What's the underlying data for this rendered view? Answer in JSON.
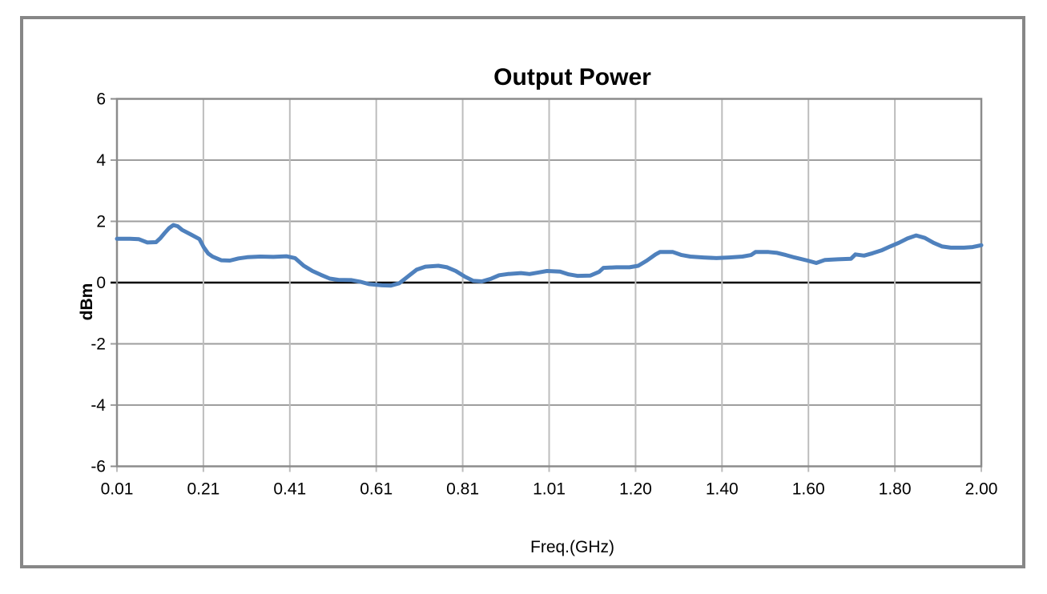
{
  "frame": {
    "background": "#FFFFFF",
    "border_color": "#878787"
  },
  "chart_data": {
    "type": "line",
    "title": "Output Power",
    "xlabel": "Freq.(GHz)",
    "ylabel": "dBm",
    "x_tick_labels": [
      "0.01",
      "0.21",
      "0.41",
      "0.61",
      "0.81",
      "1.01",
      "1.20",
      "1.40",
      "1.60",
      "1.80",
      "2.00"
    ],
    "x_tick_values": [
      0.01,
      0.21,
      0.41,
      0.61,
      0.81,
      1.01,
      1.2,
      1.4,
      1.6,
      1.8,
      2.0
    ],
    "xlim": [
      0.01,
      2.0
    ],
    "ylim": [
      -6,
      6
    ],
    "y_ticks": [
      6,
      4,
      2,
      0,
      -2,
      -4,
      -6
    ],
    "grid": true,
    "legend_position": "none",
    "colors": {
      "h_gridline": "#9E9E9E",
      "v_gridline": "#BDBDBD",
      "zero_line": "#000000",
      "plot_border": "#8C8C8C",
      "text": "#000000"
    },
    "series": [
      {
        "name": "Output Power",
        "color": "#4F81BD",
        "line_width": 5,
        "points": [
          [
            0.01,
            1.43
          ],
          [
            0.04,
            1.43
          ],
          [
            0.06,
            1.42
          ],
          [
            0.08,
            1.31
          ],
          [
            0.1,
            1.32
          ],
          [
            0.11,
            1.45
          ],
          [
            0.12,
            1.62
          ],
          [
            0.13,
            1.78
          ],
          [
            0.14,
            1.88
          ],
          [
            0.15,
            1.84
          ],
          [
            0.16,
            1.72
          ],
          [
            0.18,
            1.57
          ],
          [
            0.2,
            1.42
          ],
          [
            0.21,
            1.15
          ],
          [
            0.22,
            0.95
          ],
          [
            0.23,
            0.85
          ],
          [
            0.25,
            0.73
          ],
          [
            0.27,
            0.72
          ],
          [
            0.29,
            0.79
          ],
          [
            0.31,
            0.83
          ],
          [
            0.34,
            0.85
          ],
          [
            0.37,
            0.84
          ],
          [
            0.4,
            0.86
          ],
          [
            0.42,
            0.8
          ],
          [
            0.44,
            0.55
          ],
          [
            0.46,
            0.38
          ],
          [
            0.48,
            0.25
          ],
          [
            0.5,
            0.13
          ],
          [
            0.52,
            0.09
          ],
          [
            0.55,
            0.08
          ],
          [
            0.57,
            0.03
          ],
          [
            0.59,
            -0.05
          ],
          [
            0.62,
            -0.09
          ],
          [
            0.64,
            -0.1
          ],
          [
            0.66,
            -0.02
          ],
          [
            0.68,
            0.2
          ],
          [
            0.7,
            0.42
          ],
          [
            0.72,
            0.52
          ],
          [
            0.75,
            0.55
          ],
          [
            0.77,
            0.5
          ],
          [
            0.79,
            0.38
          ],
          [
            0.81,
            0.2
          ],
          [
            0.83,
            0.06
          ],
          [
            0.85,
            0.04
          ],
          [
            0.87,
            0.12
          ],
          [
            0.89,
            0.24
          ],
          [
            0.91,
            0.28
          ],
          [
            0.94,
            0.31
          ],
          [
            0.96,
            0.28
          ],
          [
            0.98,
            0.33
          ],
          [
            1.0,
            0.38
          ],
          [
            1.03,
            0.36
          ],
          [
            1.05,
            0.27
          ],
          [
            1.07,
            0.22
          ],
          [
            1.1,
            0.23
          ],
          [
            1.12,
            0.35
          ],
          [
            1.13,
            0.48
          ],
          [
            1.16,
            0.5
          ],
          [
            1.19,
            0.5
          ],
          [
            1.21,
            0.55
          ],
          [
            1.23,
            0.72
          ],
          [
            1.25,
            0.92
          ],
          [
            1.26,
            1.0
          ],
          [
            1.29,
            1.0
          ],
          [
            1.31,
            0.9
          ],
          [
            1.33,
            0.85
          ],
          [
            1.36,
            0.82
          ],
          [
            1.39,
            0.8
          ],
          [
            1.42,
            0.82
          ],
          [
            1.45,
            0.85
          ],
          [
            1.47,
            0.9
          ],
          [
            1.48,
            1.0
          ],
          [
            1.51,
            1.0
          ],
          [
            1.53,
            0.97
          ],
          [
            1.55,
            0.9
          ],
          [
            1.57,
            0.82
          ],
          [
            1.6,
            0.72
          ],
          [
            1.62,
            0.64
          ],
          [
            1.64,
            0.74
          ],
          [
            1.67,
            0.76
          ],
          [
            1.7,
            0.78
          ],
          [
            1.71,
            0.92
          ],
          [
            1.73,
            0.88
          ],
          [
            1.75,
            0.96
          ],
          [
            1.77,
            1.05
          ],
          [
            1.79,
            1.18
          ],
          [
            1.81,
            1.3
          ],
          [
            1.83,
            1.44
          ],
          [
            1.85,
            1.54
          ],
          [
            1.87,
            1.46
          ],
          [
            1.89,
            1.3
          ],
          [
            1.91,
            1.18
          ],
          [
            1.93,
            1.14
          ],
          [
            1.96,
            1.14
          ],
          [
            1.98,
            1.16
          ],
          [
            2.0,
            1.22
          ]
        ]
      }
    ]
  }
}
